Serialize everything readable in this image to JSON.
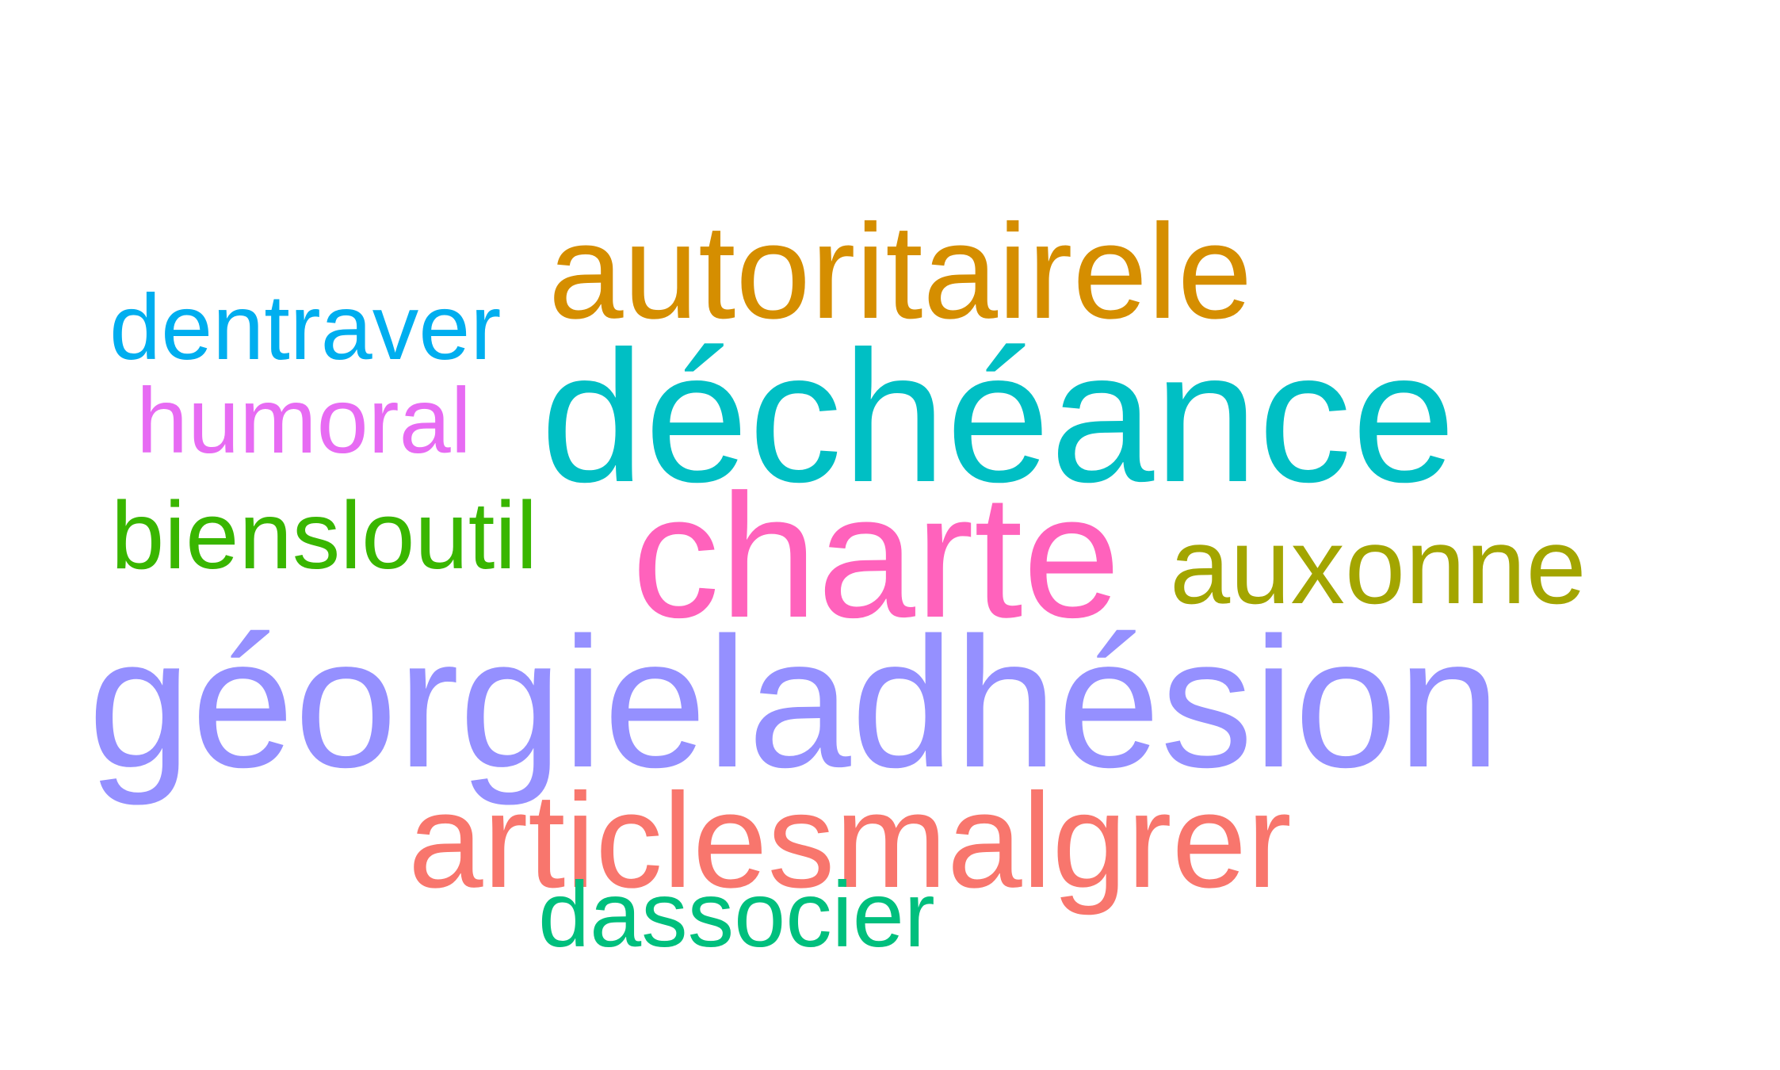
{
  "words": [
    {
      "id": "autoritairele",
      "text": "autoritairele",
      "color": "#D58E00"
    },
    {
      "id": "dentraver",
      "text": "dentraver",
      "color": "#00AEEF"
    },
    {
      "id": "decheance",
      "text": "déchéance",
      "color": "#00BFC4"
    },
    {
      "id": "humoral",
      "text": "humoral",
      "color": "#E76BF3"
    },
    {
      "id": "biensloutil",
      "text": "biensloutil",
      "color": "#39B600"
    },
    {
      "id": "charte",
      "text": "charte",
      "color": "#FF62BC"
    },
    {
      "id": "auxonne",
      "text": "auxonne",
      "color": "#A3A500"
    },
    {
      "id": "georgieladhesion",
      "text": "géorgieladhésion",
      "color": "#9590FF"
    },
    {
      "id": "articlesmalgrer",
      "text": "articlesmalgrer",
      "color": "#F8766D"
    },
    {
      "id": "dassocier",
      "text": "dassocier",
      "color": "#00BF7D"
    }
  ]
}
